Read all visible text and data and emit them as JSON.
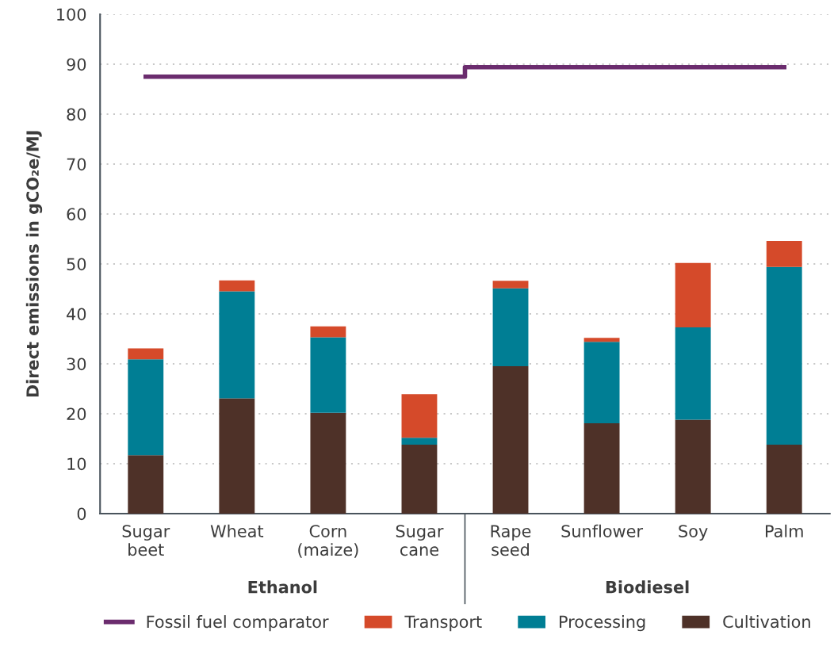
{
  "chart_data": {
    "type": "bar",
    "stacked": true,
    "ylabel": "Direct emissions in gCO₂e/MJ",
    "categories": [
      "Sugar\nbeet",
      "Wheat",
      "Corn\n(maize)",
      "Sugar\ncane",
      "Rape\nseed",
      "Sunflower",
      "Soy",
      "Palm"
    ],
    "series": [
      {
        "name": "Fossil fuel comparator",
        "type": "step",
        "color": "#6b2c6e",
        "values": [
          87.5,
          87.5,
          87.5,
          87.5,
          89.4,
          89.4,
          89.4,
          89.4
        ]
      },
      {
        "name": "Cultivation",
        "color": "#4e3128",
        "values": [
          11.7,
          23.1,
          20.2,
          13.8,
          29.5,
          18.1,
          18.8,
          13.8
        ]
      },
      {
        "name": "Processing",
        "color": "#007e94",
        "values": [
          19.2,
          21.4,
          15.1,
          1.4,
          15.6,
          16.3,
          18.5,
          35.6
        ]
      },
      {
        "name": "Transport",
        "color": "#d54a2a",
        "values": [
          2.2,
          2.2,
          2.2,
          8.7,
          1.5,
          0.8,
          12.9,
          5.2
        ]
      }
    ],
    "ylim": [
      0,
      100
    ],
    "yticks": [
      0,
      10,
      20,
      30,
      40,
      50,
      60,
      70,
      80,
      90,
      100
    ],
    "grid": "y",
    "legend": "bottom",
    "annotations": [
      "Ethanol",
      "Biodiesel"
    ]
  }
}
